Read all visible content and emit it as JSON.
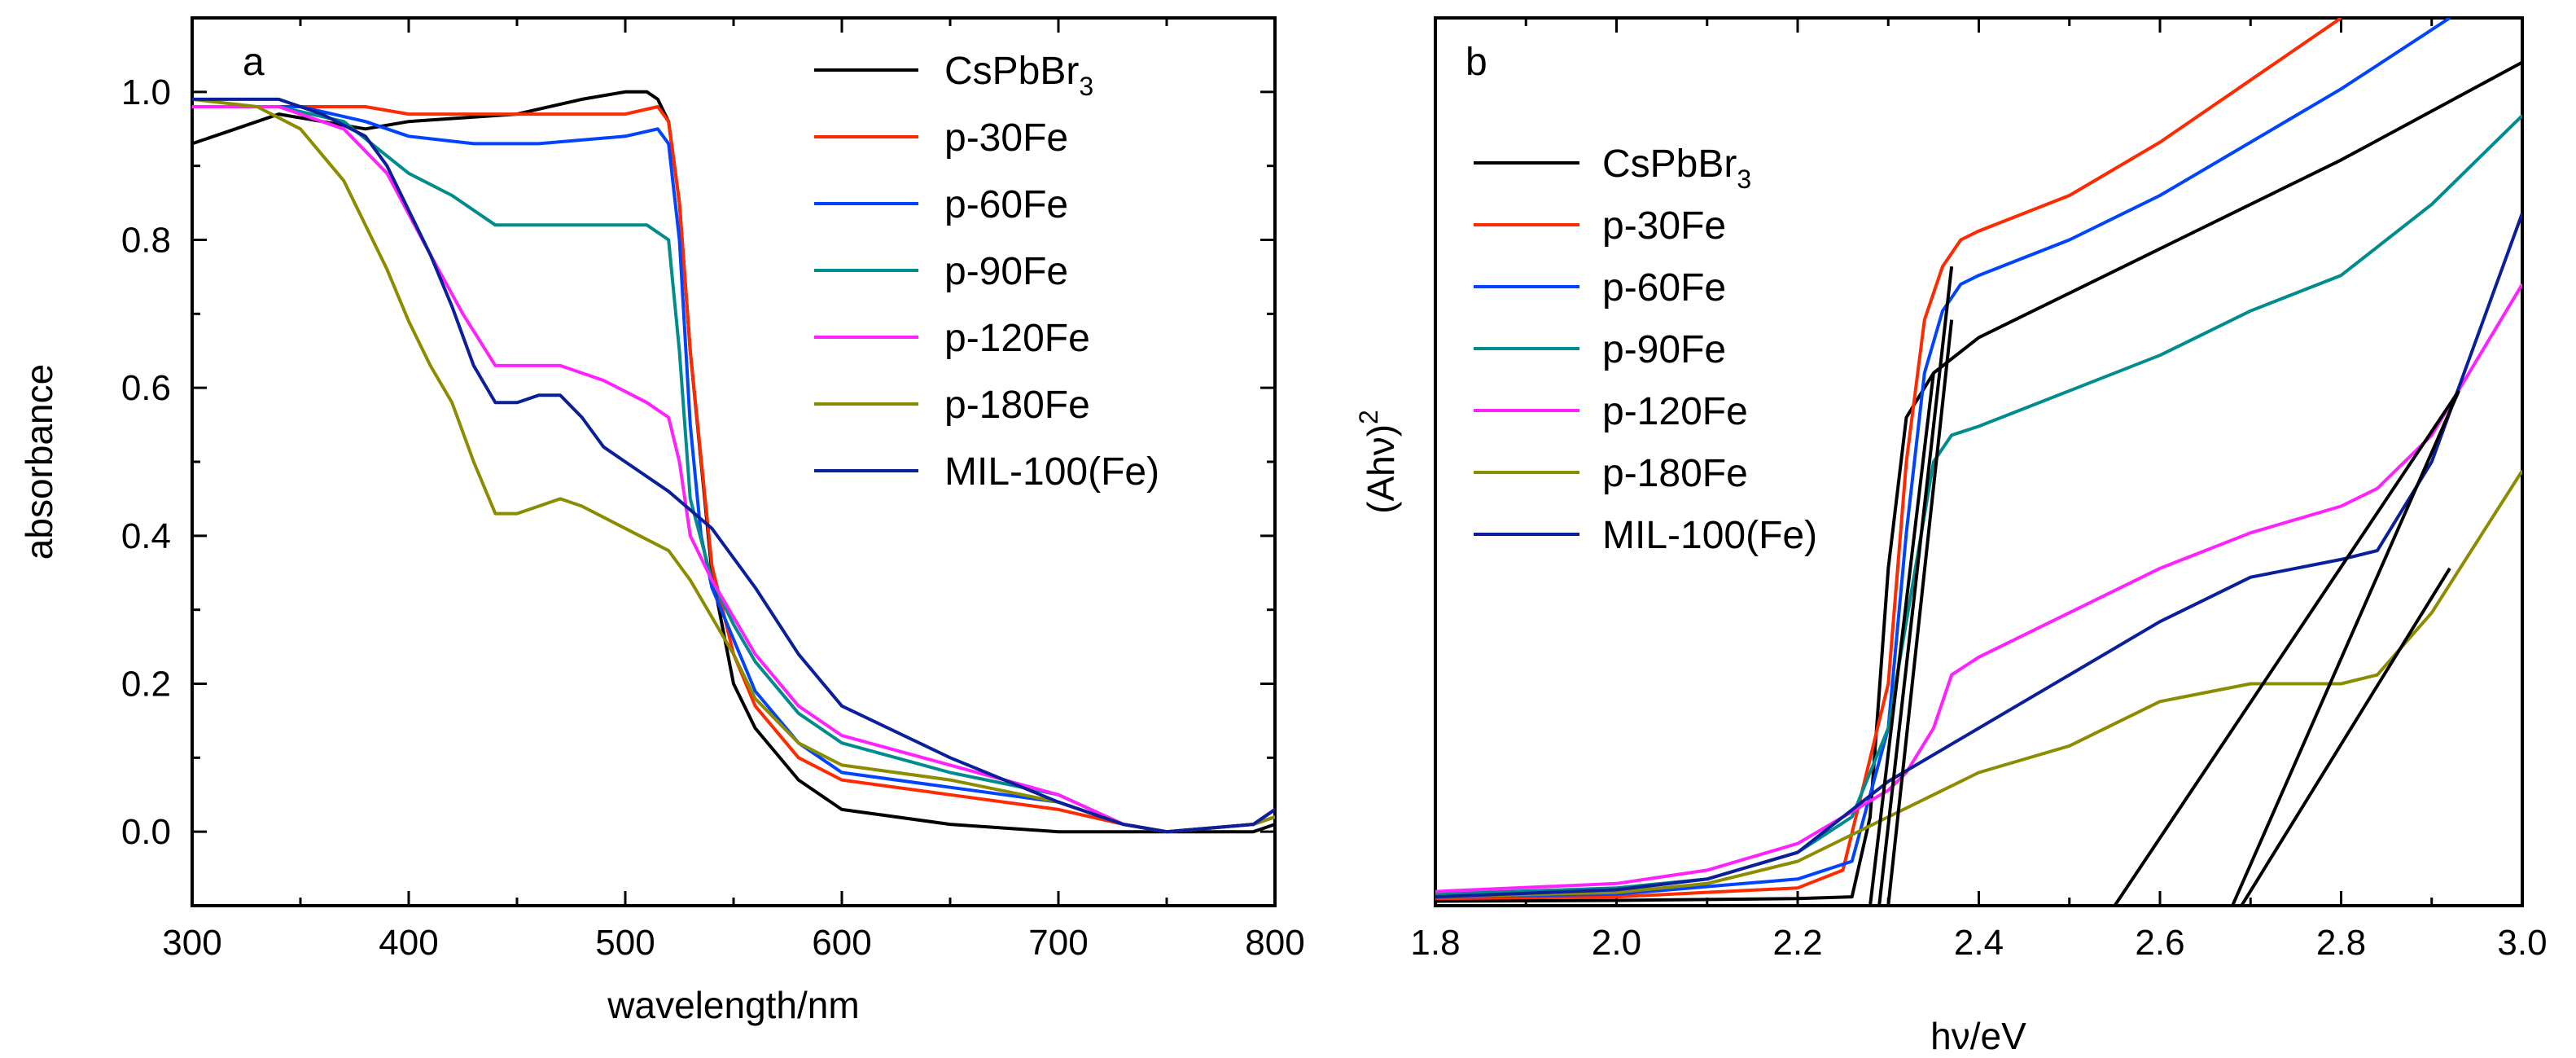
{
  "chart_data": [
    {
      "panel_label": "a",
      "type": "line",
      "xlabel": "wavelength/nm",
      "ylabel": "absorbance",
      "xlim": [
        300,
        800
      ],
      "ylim": [
        -0.1,
        1.1
      ],
      "xticks": [
        "300",
        "400",
        "500",
        "600",
        "700",
        "800"
      ],
      "yticks": [
        "0.0",
        "0.2",
        "0.4",
        "0.6",
        "0.8",
        "1.0"
      ],
      "legend_position": "top-right",
      "series": [
        {
          "name": "CsPbBr",
          "sub": "3",
          "color": "#000000",
          "x": [
            300,
            320,
            340,
            360,
            380,
            400,
            450,
            480,
            500,
            510,
            515,
            520,
            525,
            530,
            540,
            550,
            560,
            580,
            600,
            650,
            700,
            750,
            790,
            800
          ],
          "y": [
            0.93,
            0.95,
            0.97,
            0.96,
            0.95,
            0.96,
            0.97,
            0.99,
            1.0,
            1.0,
            0.99,
            0.96,
            0.85,
            0.65,
            0.35,
            0.2,
            0.14,
            0.07,
            0.03,
            0.01,
            0.0,
            0.0,
            0.0,
            0.01
          ]
        },
        {
          "name": "p-30Fe",
          "color": "#ff2a00",
          "x": [
            300,
            350,
            380,
            400,
            450,
            500,
            515,
            520,
            525,
            530,
            540,
            550,
            560,
            580,
            600,
            650,
            700,
            730,
            750,
            790,
            800
          ],
          "y": [
            0.98,
            0.98,
            0.98,
            0.97,
            0.97,
            0.97,
            0.98,
            0.96,
            0.85,
            0.65,
            0.36,
            0.24,
            0.17,
            0.1,
            0.07,
            0.05,
            0.03,
            0.01,
            0.0,
            0.01,
            0.02
          ]
        },
        {
          "name": "p-60Fe",
          "color": "#0044ff",
          "x": [
            300,
            350,
            380,
            400,
            430,
            460,
            500,
            515,
            520,
            525,
            530,
            535,
            540,
            550,
            560,
            580,
            600,
            650,
            700,
            730,
            750,
            790,
            800
          ],
          "y": [
            0.98,
            0.98,
            0.96,
            0.94,
            0.93,
            0.93,
            0.94,
            0.95,
            0.93,
            0.8,
            0.55,
            0.4,
            0.33,
            0.26,
            0.19,
            0.12,
            0.08,
            0.06,
            0.04,
            0.01,
            0.0,
            0.01,
            0.02
          ]
        },
        {
          "name": "p-90Fe",
          "color": "#008c8c",
          "x": [
            300,
            340,
            370,
            400,
            420,
            440,
            480,
            510,
            520,
            525,
            530,
            540,
            550,
            560,
            580,
            600,
            650,
            700,
            730,
            750,
            790,
            800
          ],
          "y": [
            0.98,
            0.98,
            0.96,
            0.89,
            0.86,
            0.82,
            0.82,
            0.82,
            0.8,
            0.65,
            0.45,
            0.34,
            0.28,
            0.23,
            0.16,
            0.12,
            0.08,
            0.05,
            0.01,
            0.0,
            0.01,
            0.03
          ]
        },
        {
          "name": "p-120Fe",
          "color": "#ff22ff",
          "x": [
            300,
            340,
            370,
            390,
            410,
            425,
            440,
            455,
            470,
            490,
            510,
            520,
            525,
            530,
            540,
            550,
            560,
            580,
            600,
            650,
            700,
            730,
            750,
            790,
            800
          ],
          "y": [
            0.98,
            0.98,
            0.95,
            0.89,
            0.78,
            0.7,
            0.63,
            0.63,
            0.63,
            0.61,
            0.58,
            0.56,
            0.5,
            0.4,
            0.34,
            0.29,
            0.24,
            0.17,
            0.13,
            0.09,
            0.05,
            0.01,
            0.0,
            0.01,
            0.03
          ]
        },
        {
          "name": "p-180Fe",
          "color": "#8c8c00",
          "x": [
            300,
            330,
            350,
            370,
            390,
            400,
            410,
            420,
            430,
            440,
            450,
            460,
            470,
            480,
            500,
            520,
            530,
            540,
            550,
            560,
            580,
            600,
            650,
            700,
            730,
            750,
            790,
            800
          ],
          "y": [
            0.99,
            0.98,
            0.95,
            0.88,
            0.76,
            0.69,
            0.63,
            0.58,
            0.5,
            0.43,
            0.43,
            0.44,
            0.45,
            0.44,
            0.41,
            0.38,
            0.34,
            0.29,
            0.24,
            0.18,
            0.12,
            0.09,
            0.07,
            0.04,
            0.01,
            0.0,
            0.01,
            0.02
          ]
        },
        {
          "name": "MIL-100(Fe)",
          "color": "#0a1f99",
          "x": [
            300,
            340,
            360,
            380,
            390,
            400,
            410,
            420,
            430,
            440,
            450,
            460,
            470,
            480,
            490,
            500,
            520,
            540,
            560,
            580,
            600,
            650,
            700,
            730,
            750,
            790,
            800
          ],
          "y": [
            0.99,
            0.99,
            0.97,
            0.94,
            0.9,
            0.84,
            0.78,
            0.71,
            0.63,
            0.58,
            0.58,
            0.59,
            0.59,
            0.56,
            0.52,
            0.5,
            0.46,
            0.41,
            0.33,
            0.24,
            0.17,
            0.1,
            0.04,
            0.01,
            0.0,
            0.01,
            0.03
          ]
        }
      ]
    },
    {
      "panel_label": "b",
      "type": "line",
      "xlabel": "hν/eV",
      "ylabel": "(Ahν)",
      "ylabel_sup": "2",
      "xlim": [
        1.8,
        3.0
      ],
      "ylim": [
        0,
        1
      ],
      "xticks": [
        "1.8",
        "2.0",
        "2.2",
        "2.4",
        "2.6",
        "2.8",
        "3.0"
      ],
      "legend_position": "top-left",
      "series": [
        {
          "name": "CsPbBr",
          "sub": "3",
          "color": "#000000",
          "x": [
            1.8,
            2.0,
            2.2,
            2.26,
            2.28,
            2.3,
            2.32,
            2.35,
            2.4,
            2.5,
            2.6,
            2.8,
            3.0
          ],
          "y": [
            0.005,
            0.006,
            0.008,
            0.01,
            0.1,
            0.38,
            0.55,
            0.6,
            0.64,
            0.69,
            0.74,
            0.84,
            0.95
          ]
        },
        {
          "name": "p-30Fe",
          "color": "#ff2a00",
          "x": [
            1.8,
            2.0,
            2.2,
            2.25,
            2.3,
            2.32,
            2.34,
            2.36,
            2.38,
            2.4,
            2.5,
            2.6,
            2.7,
            2.8
          ],
          "y": [
            0.008,
            0.01,
            0.02,
            0.04,
            0.25,
            0.5,
            0.66,
            0.72,
            0.75,
            0.76,
            0.8,
            0.86,
            0.93,
            1.0
          ]
        },
        {
          "name": "p-60Fe",
          "color": "#0044ff",
          "x": [
            1.8,
            2.0,
            2.2,
            2.26,
            2.3,
            2.32,
            2.34,
            2.36,
            2.38,
            2.4,
            2.5,
            2.6,
            2.7,
            2.8,
            2.92
          ],
          "y": [
            0.01,
            0.013,
            0.03,
            0.05,
            0.2,
            0.42,
            0.6,
            0.67,
            0.7,
            0.71,
            0.75,
            0.8,
            0.86,
            0.92,
            1.0
          ]
        },
        {
          "name": "p-90Fe",
          "color": "#008c8c",
          "x": [
            1.8,
            2.0,
            2.1,
            2.2,
            2.26,
            2.3,
            2.33,
            2.35,
            2.37,
            2.4,
            2.5,
            2.6,
            2.7,
            2.8,
            2.9,
            3.0
          ],
          "y": [
            0.013,
            0.02,
            0.03,
            0.06,
            0.1,
            0.2,
            0.38,
            0.5,
            0.53,
            0.54,
            0.58,
            0.62,
            0.67,
            0.71,
            0.79,
            0.89
          ]
        },
        {
          "name": "p-120Fe",
          "color": "#ff22ff",
          "x": [
            1.8,
            2.0,
            2.1,
            2.2,
            2.25,
            2.3,
            2.32,
            2.35,
            2.37,
            2.4,
            2.5,
            2.6,
            2.7,
            2.8,
            2.84,
            2.9,
            3.0
          ],
          "y": [
            0.016,
            0.025,
            0.04,
            0.07,
            0.1,
            0.13,
            0.15,
            0.2,
            0.26,
            0.28,
            0.33,
            0.38,
            0.42,
            0.45,
            0.47,
            0.53,
            0.7
          ]
        },
        {
          "name": "p-180Fe",
          "color": "#8c8c00",
          "x": [
            1.8,
            2.0,
            2.1,
            2.2,
            2.3,
            2.4,
            2.5,
            2.6,
            2.7,
            2.8,
            2.84,
            2.9,
            3.0
          ],
          "y": [
            0.01,
            0.015,
            0.025,
            0.05,
            0.1,
            0.15,
            0.18,
            0.23,
            0.25,
            0.25,
            0.26,
            0.33,
            0.49
          ]
        },
        {
          "name": "MIL-100(Fe)",
          "color": "#0a1f99",
          "x": [
            1.8,
            2.0,
            2.1,
            2.2,
            2.3,
            2.4,
            2.5,
            2.6,
            2.7,
            2.8,
            2.84,
            2.9,
            3.0
          ],
          "y": [
            0.01,
            0.018,
            0.03,
            0.06,
            0.14,
            0.2,
            0.26,
            0.32,
            0.37,
            0.39,
            0.4,
            0.5,
            0.78
          ]
        }
      ],
      "tangents": [
        {
          "x": [
            2.28,
            2.35
          ],
          "y": [
            0.0,
            0.6
          ]
        },
        {
          "x": [
            2.29,
            2.37
          ],
          "y": [
            0.0,
            0.72
          ]
        },
        {
          "x": [
            2.3,
            2.37
          ],
          "y": [
            0.0,
            0.66
          ]
        },
        {
          "x": [
            2.55,
            2.93
          ],
          "y": [
            0.0,
            0.58
          ]
        },
        {
          "x": [
            2.68,
            2.93
          ],
          "y": [
            0.0,
            0.58
          ]
        },
        {
          "x": [
            2.69,
            2.92
          ],
          "y": [
            0.0,
            0.38
          ]
        }
      ]
    }
  ]
}
